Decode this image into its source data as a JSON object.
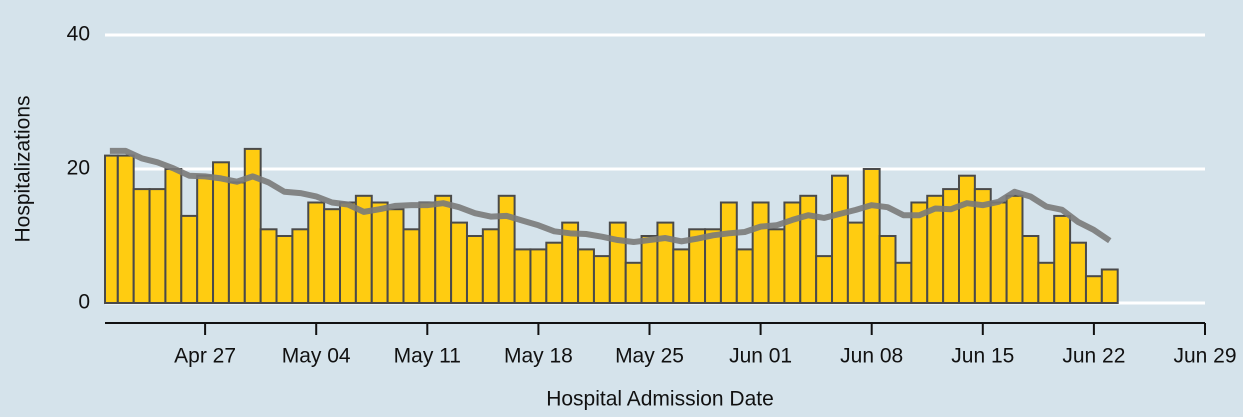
{
  "chart_data": {
    "type": "bar",
    "x_title": "Hospital Admission Date",
    "y_title": "Hospitalizations",
    "x": [
      "Apr 21",
      "Apr 22",
      "Apr 23",
      "Apr 24",
      "Apr 25",
      "Apr 26",
      "Apr 27",
      "Apr 28",
      "Apr 29",
      "Apr 30",
      "May 01",
      "May 02",
      "May 03",
      "May 04",
      "May 05",
      "May 06",
      "May 07",
      "May 08",
      "May 09",
      "May 10",
      "May 11",
      "May 12",
      "May 13",
      "May 14",
      "May 15",
      "May 16",
      "May 17",
      "May 18",
      "May 19",
      "May 20",
      "May 21",
      "May 22",
      "May 23",
      "May 24",
      "May 25",
      "May 26",
      "May 27",
      "May 28",
      "May 29",
      "May 30",
      "May 31",
      "Jun 01",
      "Jun 02",
      "Jun 03",
      "Jun 04",
      "Jun 05",
      "Jun 06",
      "Jun 07",
      "Jun 08",
      "Jun 09",
      "Jun 10",
      "Jun 11",
      "Jun 12",
      "Jun 13",
      "Jun 14",
      "Jun 15",
      "Jun 16",
      "Jun 17",
      "Jun 18",
      "Jun 19",
      "Jun 20",
      "Jun 21",
      "Jun 22",
      "Jun 23"
    ],
    "series": [
      {
        "type": "bar",
        "color": "#ffcc11",
        "values": [
          22,
          22,
          17,
          17,
          20,
          13,
          19,
          21,
          18,
          23,
          11,
          10,
          11,
          15,
          14,
          15,
          16,
          15,
          14,
          11,
          15,
          16,
          12,
          10,
          11,
          16,
          8,
          8,
          9,
          12,
          8,
          7,
          12,
          6,
          10,
          12,
          8,
          11,
          11,
          15,
          8,
          15,
          11,
          15,
          16,
          7,
          19,
          12,
          20,
          10,
          6,
          15,
          16,
          17,
          19,
          17,
          15,
          16,
          10,
          6,
          13,
          9,
          4,
          5
        ]
      },
      {
        "type": "line",
        "color": "#7a7a7a",
        "values": [
          22.7,
          22.7,
          21.6,
          21,
          20.1,
          19,
          18.9,
          18.6,
          18.1,
          18.9,
          18,
          16.6,
          16.4,
          15.9,
          15,
          14.7,
          13.6,
          14,
          14.5,
          14.6,
          14.6,
          14.9,
          14.3,
          13.4,
          12.9,
          13,
          12.3,
          11.6,
          10.7,
          10.4,
          10.3,
          9.9,
          9.4,
          9.1,
          9.4,
          9.7,
          9.2,
          9.6,
          10.1,
          10.4,
          10.6,
          11.4,
          11.6,
          12.4,
          13.1,
          12.7,
          13.3,
          13.9,
          14.6,
          14.3,
          13.1,
          13.1,
          14.1,
          14,
          14.9,
          14.6,
          15.1,
          16.6,
          15.9,
          14.4,
          13.9,
          12.1,
          10.9,
          9.3
        ]
      }
    ],
    "xlim": [
      "Apr 20",
      "Jun 29"
    ],
    "xticks": [
      "Apr 27",
      "May 04",
      "May 11",
      "May 18",
      "May 25",
      "Jun 01",
      "Jun 08",
      "Jun 15",
      "Jun 22",
      "Jun 29"
    ],
    "ylim": [
      0,
      40
    ],
    "yticks": [
      0,
      20,
      40
    ],
    "grid": true,
    "background": "#d5e3eb"
  }
}
